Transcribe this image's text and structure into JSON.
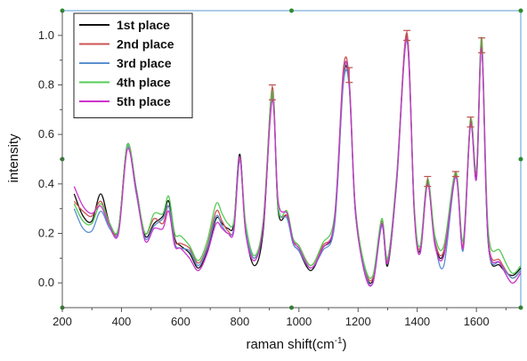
{
  "chart_data": {
    "type": "line",
    "xlabel": "raman shift(cm",
    "xlabel_sup": "-1",
    "xlabel_suffix": ")",
    "ylabel": "intensity",
    "xlim": [
      200,
      1750
    ],
    "ylim": [
      -0.1,
      1.1
    ],
    "x_ticks": [
      200,
      400,
      600,
      800,
      1000,
      1200,
      1400,
      1600
    ],
    "y_ticks": [
      0.0,
      0.2,
      0.4,
      0.6,
      0.8,
      1.0
    ],
    "x_tick_labels": [
      "200",
      "400",
      "600",
      "800",
      "1000",
      "1200",
      "1400",
      "1600"
    ],
    "y_tick_labels": [
      "0.0",
      "0.2",
      "0.4",
      "0.6",
      "0.8",
      "1.0"
    ],
    "grid": false,
    "legend_position": "top-left",
    "frame_color": "#5b9bd5",
    "error_bar_color": "#c0504d",
    "axis_color": "#555555",
    "x": [
      240,
      270,
      300,
      330,
      360,
      390,
      420,
      450,
      480,
      510,
      540,
      560,
      580,
      600,
      630,
      660,
      690,
      720,
      740,
      760,
      780,
      800,
      820,
      850,
      880,
      910,
      930,
      960,
      980,
      1000,
      1040,
      1080,
      1120,
      1150,
      1170,
      1190,
      1220,
      1250,
      1280,
      1300,
      1330,
      1365,
      1390,
      1410,
      1435,
      1460,
      1490,
      1530,
      1555,
      1580,
      1600,
      1618,
      1640,
      1680,
      1720,
      1750
    ],
    "series": [
      {
        "name": "1st place",
        "color": "#111111",
        "values": [
          0.36,
          0.27,
          0.25,
          0.36,
          0.24,
          0.22,
          0.56,
          0.38,
          0.19,
          0.24,
          0.27,
          0.33,
          0.18,
          0.15,
          0.12,
          0.06,
          0.13,
          0.26,
          0.24,
          0.22,
          0.24,
          0.52,
          0.21,
          0.07,
          0.22,
          0.77,
          0.29,
          0.27,
          0.16,
          0.13,
          0.05,
          0.14,
          0.24,
          0.82,
          0.8,
          0.3,
          0.06,
          0.01,
          0.24,
          0.07,
          0.41,
          1.0,
          0.29,
          0.13,
          0.41,
          0.16,
          0.12,
          0.44,
          0.14,
          0.65,
          0.43,
          0.96,
          0.16,
          0.07,
          0.03,
          0.06
        ]
      },
      {
        "name": "2nd place",
        "color": "#cc5555",
        "values": [
          0.33,
          0.29,
          0.27,
          0.33,
          0.24,
          0.21,
          0.55,
          0.37,
          0.2,
          0.26,
          0.24,
          0.31,
          0.17,
          0.16,
          0.14,
          0.08,
          0.15,
          0.29,
          0.25,
          0.21,
          0.22,
          0.5,
          0.21,
          0.1,
          0.25,
          0.79,
          0.31,
          0.27,
          0.17,
          0.15,
          0.07,
          0.15,
          0.25,
          0.86,
          0.82,
          0.31,
          0.07,
          0.02,
          0.25,
          0.09,
          0.42,
          1.01,
          0.3,
          0.14,
          0.42,
          0.17,
          0.13,
          0.44,
          0.15,
          0.66,
          0.45,
          0.96,
          0.18,
          0.09,
          0.02,
          0.05
        ]
      },
      {
        "name": "3rd place",
        "color": "#5b8fd0",
        "values": [
          0.3,
          0.22,
          0.21,
          0.29,
          0.22,
          0.21,
          0.55,
          0.36,
          0.18,
          0.23,
          0.26,
          0.31,
          0.16,
          0.14,
          0.13,
          0.07,
          0.14,
          0.27,
          0.23,
          0.2,
          0.22,
          0.49,
          0.22,
          0.1,
          0.24,
          0.76,
          0.31,
          0.26,
          0.16,
          0.13,
          0.06,
          0.13,
          0.23,
          0.8,
          0.79,
          0.3,
          0.06,
          0.0,
          0.23,
          0.08,
          0.4,
          0.98,
          0.29,
          0.12,
          0.4,
          0.16,
          0.07,
          0.43,
          0.13,
          0.64,
          0.42,
          0.95,
          0.16,
          0.08,
          0.02,
          0.05
        ]
      },
      {
        "name": "4th place",
        "color": "#55cc55",
        "values": [
          0.32,
          0.25,
          0.24,
          0.32,
          0.24,
          0.22,
          0.56,
          0.38,
          0.2,
          0.28,
          0.28,
          0.35,
          0.2,
          0.19,
          0.15,
          0.09,
          0.17,
          0.32,
          0.28,
          0.24,
          0.25,
          0.51,
          0.24,
          0.11,
          0.26,
          0.78,
          0.3,
          0.29,
          0.18,
          0.15,
          0.07,
          0.16,
          0.27,
          0.83,
          0.81,
          0.32,
          0.08,
          0.03,
          0.26,
          0.1,
          0.43,
          0.99,
          0.31,
          0.15,
          0.42,
          0.19,
          0.15,
          0.45,
          0.17,
          0.66,
          0.46,
          0.99,
          0.21,
          0.13,
          0.04,
          0.07
        ]
      },
      {
        "name": "5th place",
        "color": "#cc33cc",
        "values": [
          0.39,
          0.31,
          0.28,
          0.31,
          0.23,
          0.2,
          0.54,
          0.37,
          0.17,
          0.22,
          0.22,
          0.29,
          0.15,
          0.14,
          0.1,
          0.05,
          0.12,
          0.24,
          0.22,
          0.2,
          0.21,
          0.51,
          0.2,
          0.09,
          0.24,
          0.74,
          0.33,
          0.28,
          0.17,
          0.14,
          0.06,
          0.14,
          0.25,
          0.84,
          0.81,
          0.31,
          0.05,
          0.0,
          0.24,
          0.08,
          0.41,
          0.99,
          0.28,
          0.12,
          0.4,
          0.15,
          0.11,
          0.43,
          0.14,
          0.64,
          0.42,
          0.95,
          0.17,
          0.08,
          0.0,
          0.04
        ]
      }
    ],
    "error_bars": [
      {
        "x": 910,
        "y": 0.77,
        "err": 0.03
      },
      {
        "x": 1170,
        "y": 0.84,
        "err": 0.03
      },
      {
        "x": 1365,
        "y": 1.0,
        "err": 0.02
      },
      {
        "x": 1435,
        "y": 0.41,
        "err": 0.02
      },
      {
        "x": 1530,
        "y": 0.44,
        "err": 0.01
      },
      {
        "x": 1580,
        "y": 0.65,
        "err": 0.02
      },
      {
        "x": 1618,
        "y": 0.96,
        "err": 0.03
      }
    ]
  }
}
